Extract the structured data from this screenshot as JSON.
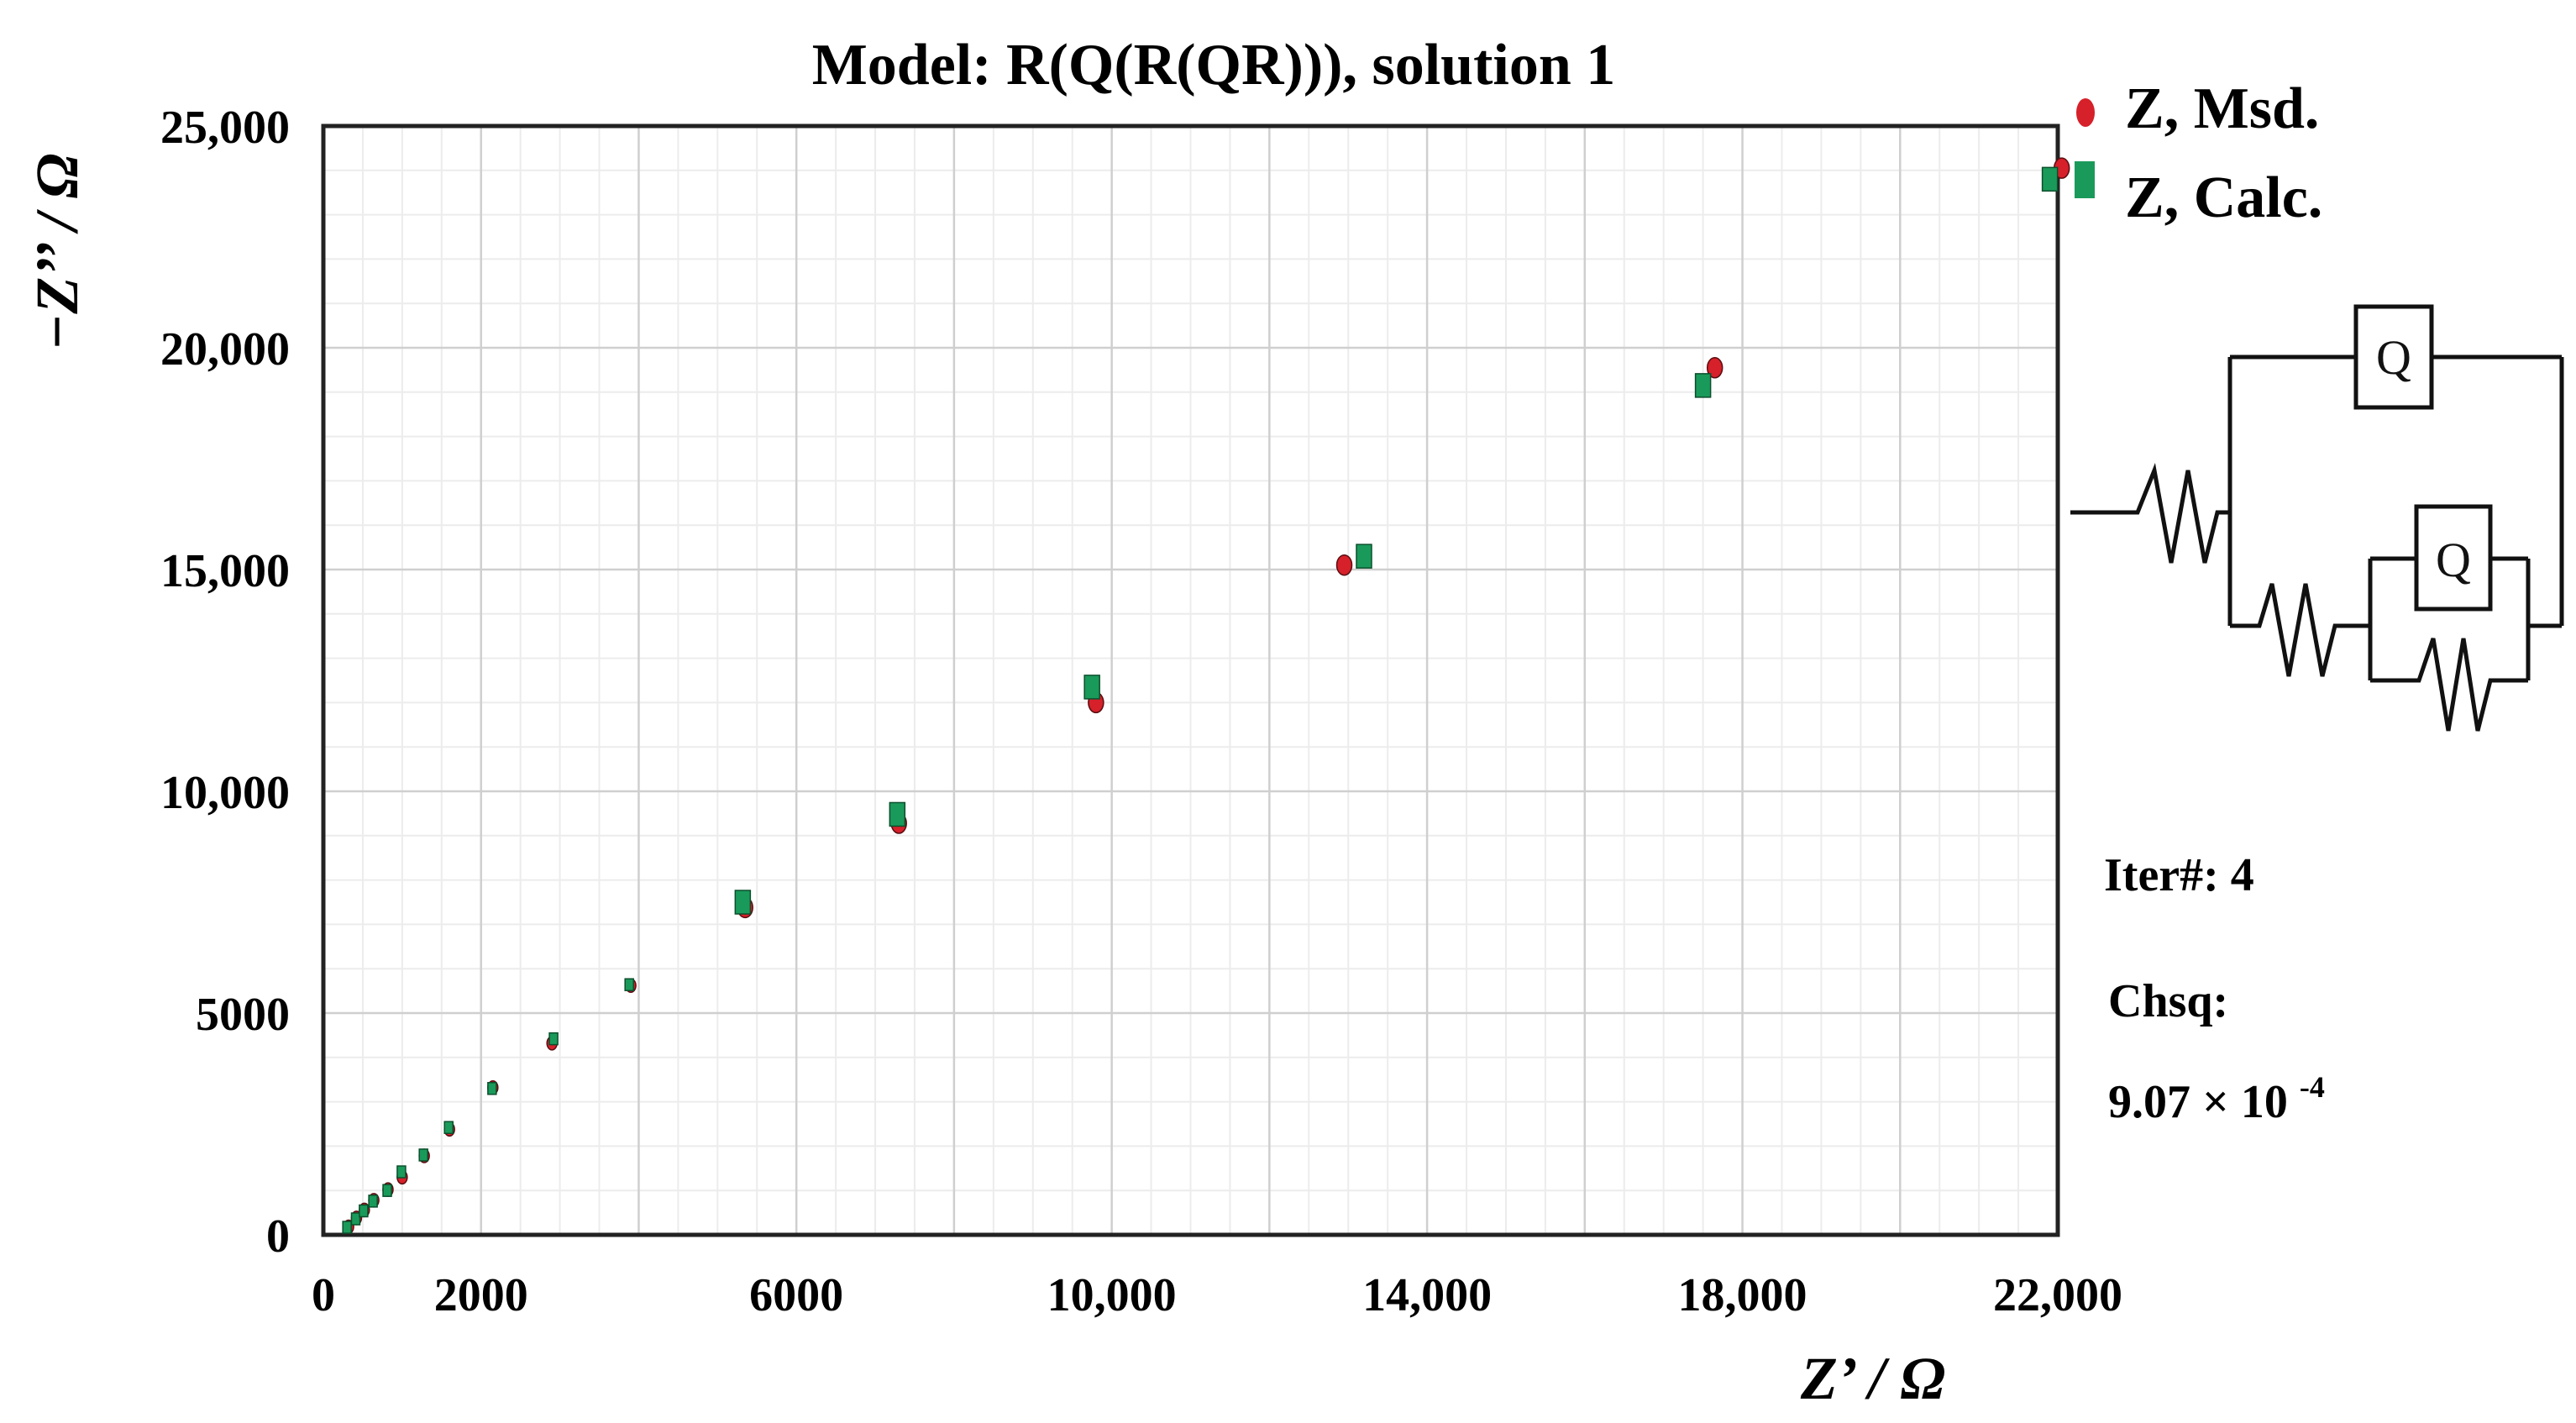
{
  "chart_data": {
    "type": "scatter",
    "title": "Model: R(Q(R(QR))), solution 1",
    "xlabel": "Z’ / Ω",
    "ylabel": "−Z’’ / Ω",
    "xlim": [
      0,
      22000
    ],
    "ylim": [
      0,
      25000
    ],
    "x_ticks": [
      0,
      2000,
      6000,
      10000,
      14000,
      18000,
      22000
    ],
    "x_tick_labels": [
      "0",
      "2000",
      "6000",
      "10,000",
      "14,000",
      "18,000",
      "22,000"
    ],
    "y_ticks": [
      0,
      5000,
      10000,
      15000,
      20000,
      25000
    ],
    "y_tick_labels": [
      "0",
      "5000",
      "10,000",
      "15,000",
      "20,000",
      "25,000"
    ],
    "grid": true,
    "legend_position": "top-right",
    "series": [
      {
        "name": "Z, Msd.",
        "color": "#d6202a",
        "marker": "circle",
        "points": [
          [
            320,
            180
          ],
          [
            420,
            380
          ],
          [
            520,
            560
          ],
          [
            640,
            780
          ],
          [
            820,
            1020
          ],
          [
            1000,
            1300
          ],
          [
            1280,
            1780
          ],
          [
            1600,
            2380
          ],
          [
            2150,
            3320
          ],
          [
            2900,
            4320
          ],
          [
            3900,
            5620
          ],
          [
            5350,
            7380
          ],
          [
            7300,
            9280
          ],
          [
            9800,
            12000
          ],
          [
            12950,
            15100
          ],
          [
            17650,
            19550
          ],
          [
            22050,
            24050
          ]
        ]
      },
      {
        "name": "Z, Calc.",
        "color": "#1a9a5a",
        "marker": "square",
        "points": [
          [
            300,
            170
          ],
          [
            410,
            360
          ],
          [
            510,
            540
          ],
          [
            630,
            760
          ],
          [
            810,
            1000
          ],
          [
            990,
            1420
          ],
          [
            1270,
            1800
          ],
          [
            1590,
            2420
          ],
          [
            2140,
            3300
          ],
          [
            2920,
            4420
          ],
          [
            3880,
            5640
          ],
          [
            5320,
            7500
          ],
          [
            7280,
            9480
          ],
          [
            9750,
            12350
          ],
          [
            13200,
            15300
          ],
          [
            17500,
            19150
          ],
          [
            21900,
            23800
          ]
        ]
      }
    ]
  },
  "circuit": {
    "element_labels": [
      "Q",
      "Q"
    ],
    "element_icon": "equivalent-circuit-diagram"
  },
  "fit_info": {
    "iter_label": "Iter#: 4",
    "chsq_label": "Chsq:",
    "chsq_value_mantissa": "9.07 × 10",
    "chsq_value_exponent": "-4"
  }
}
